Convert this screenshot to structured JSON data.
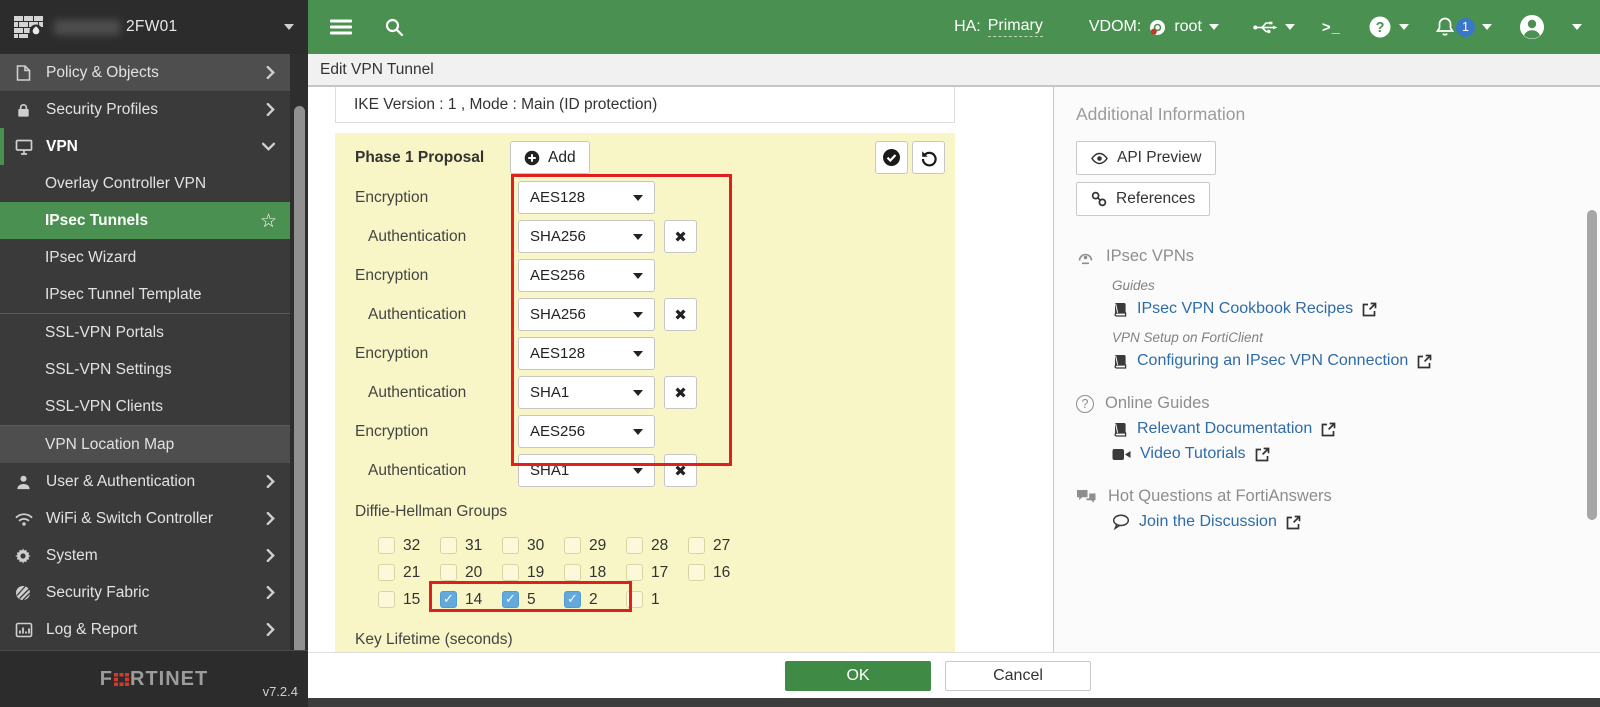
{
  "topbar": {
    "device_name": "2FW01",
    "ha_label": "HA:",
    "ha_value": "Primary",
    "vdom_label": "VDOM:",
    "vdom_value": "root",
    "terminal_glyph": ">_",
    "notification_count": "1"
  },
  "sidebar": {
    "items": [
      {
        "label": "Policy & Objects",
        "icon": "policy",
        "chevron": "right",
        "highlight": true
      },
      {
        "label": "Security Profiles",
        "icon": "lock",
        "chevron": "right"
      },
      {
        "label": "VPN",
        "icon": "monitor",
        "chevron": "down",
        "active": true
      },
      {
        "label": "Overlay Controller VPN",
        "sub": true
      },
      {
        "label": "IPsec Tunnels",
        "sub": true,
        "selected": true,
        "star": true
      },
      {
        "label": "IPsec Wizard",
        "sub": true
      },
      {
        "label": "IPsec Tunnel Template",
        "sub": true,
        "divider_after": true
      },
      {
        "label": "SSL-VPN Portals",
        "sub": true
      },
      {
        "label": "SSL-VPN Settings",
        "sub": true
      },
      {
        "label": "SSL-VPN Clients",
        "sub": true,
        "divider_after": true
      },
      {
        "label": "VPN Location Map",
        "sub": true,
        "highlight": true
      },
      {
        "label": "User & Authentication",
        "icon": "user",
        "chevron": "right"
      },
      {
        "label": "WiFi & Switch Controller",
        "icon": "wifi",
        "chevron": "right"
      },
      {
        "label": "System",
        "icon": "gear",
        "chevron": "right"
      },
      {
        "label": "Security Fabric",
        "icon": "fabric",
        "chevron": "right"
      },
      {
        "label": "Log & Report",
        "icon": "chart",
        "chevron": "right"
      }
    ],
    "brand_prefix": "F",
    "brand_suffix": "RTINET",
    "version": "v7.2.4"
  },
  "tab": {
    "title": "Edit VPN Tunnel"
  },
  "form": {
    "ike_line": "IKE Version : 1 , Mode : Main (ID protection)",
    "phase1_label": "Phase 1 Proposal",
    "add_label": "Add",
    "encryption_label": "Encryption",
    "authentication_label": "Authentication",
    "proposals": [
      {
        "encryption": "AES128",
        "authentication": "SHA256"
      },
      {
        "encryption": "AES256",
        "authentication": "SHA256"
      },
      {
        "encryption": "AES128",
        "authentication": "SHA1"
      },
      {
        "encryption": "AES256",
        "authentication": "SHA1"
      }
    ],
    "dh_label": "Diffie-Hellman Groups",
    "dh_rows": [
      [
        {
          "n": "32",
          "checked": false
        },
        {
          "n": "31",
          "checked": false
        },
        {
          "n": "30",
          "checked": false
        },
        {
          "n": "29",
          "checked": false
        },
        {
          "n": "28",
          "checked": false
        },
        {
          "n": "27",
          "checked": false
        }
      ],
      [
        {
          "n": "21",
          "checked": false
        },
        {
          "n": "20",
          "checked": false
        },
        {
          "n": "19",
          "checked": false
        },
        {
          "n": "18",
          "checked": false
        },
        {
          "n": "17",
          "checked": false
        },
        {
          "n": "16",
          "checked": false
        }
      ],
      [
        {
          "n": "15",
          "checked": false
        },
        {
          "n": "14",
          "checked": true
        },
        {
          "n": "5",
          "checked": true
        },
        {
          "n": "2",
          "checked": true
        },
        {
          "n": "1",
          "checked": false
        }
      ]
    ],
    "key_lifetime_label": "Key Lifetime (seconds)"
  },
  "right_panel": {
    "title": "Additional Information",
    "tools": [
      {
        "label": "API Preview",
        "icon": "eye"
      },
      {
        "label": "References",
        "icon": "linkchain"
      }
    ],
    "sections": [
      {
        "heading": "IPsec VPNs",
        "icon": "tunnel",
        "groups": [
          {
            "caption": "Guides",
            "links": [
              {
                "label": "IPsec VPN Cookbook Recipes",
                "icon": "book"
              }
            ]
          },
          {
            "caption": "VPN Setup on FortiClient",
            "links": [
              {
                "label": "Configuring an IPsec VPN Connection",
                "icon": "book"
              }
            ]
          }
        ]
      },
      {
        "heading": "Online Guides",
        "icon": "question",
        "groups": [
          {
            "links": [
              {
                "label": "Relevant Documentation",
                "icon": "book"
              },
              {
                "label": "Video Tutorials",
                "icon": "video"
              }
            ]
          }
        ]
      },
      {
        "heading": "Hot Questions at FortiAnswers",
        "icon": "chat",
        "groups": [
          {
            "links": [
              {
                "label": "Join the Discussion",
                "icon": "bubble"
              }
            ]
          }
        ]
      }
    ]
  },
  "footer": {
    "ok_label": "OK",
    "cancel_label": "Cancel"
  },
  "colors": {
    "topbar_green": "#4a9151",
    "ok_green": "#3f8b46",
    "link_blue": "#2e6ca8",
    "annotation_red": "#e01f1f",
    "checked_blue": "#62a9dd",
    "panel_yellow": "#f8f6c6"
  }
}
